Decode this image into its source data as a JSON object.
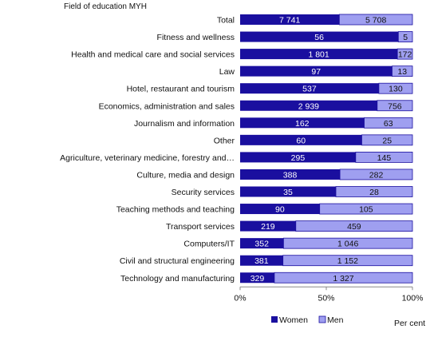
{
  "chart_data": {
    "type": "bar",
    "orientation": "horizontal",
    "stacked": "percent",
    "title": "Field of education MYH",
    "unit_label": "Per cent",
    "categories": [
      "Total",
      "Fitness and wellness",
      "Health and medical care and social services",
      "Law",
      "Hotel, restaurant and tourism",
      "Economics, administration and sales",
      "Journalism and information",
      "Other",
      "Agriculture, veterinary medicine, forestry and…",
      "Culture, media and design",
      "Security services",
      "Teaching methods and teaching",
      "Transport services",
      "Computers/IT",
      "Civil and structural engineering",
      "Technology and manufacturing"
    ],
    "series": [
      {
        "name": "Women",
        "color": "#1a0f9f",
        "values": [
          7741,
          56,
          1801,
          97,
          537,
          2939,
          162,
          60,
          295,
          388,
          35,
          90,
          219,
          352,
          381,
          329
        ],
        "labels": [
          "7 741",
          "56",
          "1 801",
          "97",
          "537",
          "2 939",
          "162",
          "60",
          "295",
          "388",
          "35",
          "90",
          "219",
          "352",
          "381",
          "329"
        ]
      },
      {
        "name": "Men",
        "color": "#9f9ff0",
        "values": [
          5708,
          5,
          172,
          13,
          130,
          756,
          63,
          25,
          145,
          282,
          28,
          105,
          459,
          1046,
          1152,
          1327
        ],
        "labels": [
          "5 708",
          "5",
          "172",
          "13",
          "130",
          "756",
          "63",
          "25",
          "145",
          "282",
          "28",
          "105",
          "459",
          "1 046",
          "1 152",
          "1 327"
        ]
      }
    ],
    "x_ticks": [
      {
        "value": 0,
        "label": "0%"
      },
      {
        "value": 50,
        "label": "50%"
      },
      {
        "value": 100,
        "label": "100%"
      }
    ],
    "xlim": [
      0,
      100
    ],
    "grid": false,
    "legend_position": "bottom"
  }
}
